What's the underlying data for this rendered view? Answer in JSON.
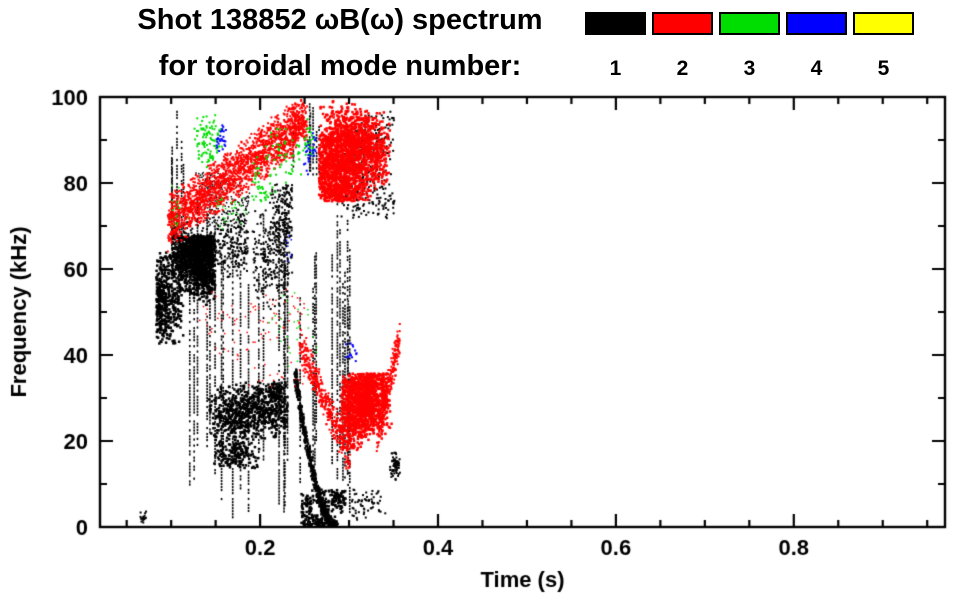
{
  "chart_data": {
    "type": "scatter",
    "title": "Shot 138852 ωB(ω) spectrum",
    "subtitle": "for toroidal mode number:",
    "xlabel": "Time (s)",
    "ylabel": "Frequency (kHz)",
    "xlim": [
      0.02,
      0.97
    ],
    "ylim": [
      0,
      100
    ],
    "xticks": [
      0.2,
      0.4,
      0.6,
      0.8
    ],
    "yticks": [
      0,
      20,
      40,
      60,
      80,
      100
    ],
    "xtick_minor_interval": 0.05,
    "ytick_minor_interval": 10,
    "grid": false,
    "legend_position": "top-right",
    "background": "#ffffff",
    "axis_color": "#000000",
    "series": [
      {
        "name": "1",
        "mode_number": 1,
        "color": "#000000",
        "clusters": [
          {
            "shape": "blob",
            "t": [
              0.082,
              0.148
            ],
            "f": [
              42,
              68
            ],
            "n": 2600,
            "size": 2.5,
            "clumps": 3
          },
          {
            "shape": "blob",
            "t": [
              0.1,
              0.185
            ],
            "f": [
              58,
              77
            ],
            "n": 900,
            "size": 2,
            "clumps": 3
          },
          {
            "shape": "blob",
            "t": [
              0.125,
              0.19
            ],
            "f": [
              70,
              83
            ],
            "n": 260,
            "size": 1.5,
            "clumps": 4
          },
          {
            "shape": "vstreaks",
            "t": [
              0.115,
              0.3
            ],
            "f": [
              2,
              80
            ],
            "streaks": 30
          },
          {
            "shape": "vstreaks",
            "t": [
              0.09,
              0.115
            ],
            "f": [
              55,
              100
            ],
            "streaks": 5
          },
          {
            "shape": "blob",
            "t": [
              0.14,
              0.23
            ],
            "f": [
              14,
              34
            ],
            "n": 1100,
            "size": 2.5,
            "clumps": 5
          },
          {
            "shape": "blob",
            "t": [
              0.19,
              0.235
            ],
            "f": [
              50,
              80
            ],
            "n": 500,
            "size": 2,
            "clumps": 4
          },
          {
            "shape": "chirp",
            "t": [
              0.238,
              0.285
            ],
            "f": [
              36,
              0
            ],
            "n": 600,
            "thick": 3
          },
          {
            "shape": "blob",
            "t": [
              0.245,
              0.295
            ],
            "f": [
              0,
              9
            ],
            "n": 400,
            "size": 2.5,
            "clumps": 3
          },
          {
            "shape": "blob",
            "t": [
              0.28,
              0.35
            ],
            "f": [
              72,
              97
            ],
            "n": 420,
            "size": 2,
            "clumps": 5
          },
          {
            "shape": "vstreaks",
            "t": [
              0.235,
              0.27
            ],
            "f": [
              80,
              100
            ],
            "streaks": 6
          },
          {
            "shape": "blob",
            "t": [
              0.302,
              0.34
            ],
            "f": [
              1,
              9
            ],
            "n": 80,
            "size": 2,
            "clumps": 3
          },
          {
            "shape": "blob",
            "t": [
              0.345,
              0.357
            ],
            "f": [
              11,
              18
            ],
            "n": 60,
            "size": 2,
            "clumps": 1
          },
          {
            "shape": "blob",
            "t": [
              0.062,
              0.072
            ],
            "f": [
              1,
              4
            ],
            "n": 18,
            "size": 2,
            "clumps": 1
          }
        ]
      },
      {
        "name": "2",
        "mode_number": 2,
        "color": "#ff0000",
        "clusters": [
          {
            "shape": "band",
            "t": [
              0.095,
              0.24
            ],
            "f": [
              71,
              93
            ],
            "n": 2000,
            "thick": 7
          },
          {
            "shape": "blob",
            "t": [
              0.225,
              0.252
            ],
            "f": [
              90,
              100
            ],
            "n": 220,
            "size": 2,
            "clumps": 2
          },
          {
            "shape": "blob",
            "t": [
              0.265,
              0.345
            ],
            "f": [
              76,
              100
            ],
            "n": 2600,
            "size": 2.5,
            "clumps": 4
          },
          {
            "shape": "band",
            "t": [
              0.243,
              0.3
            ],
            "f": [
              43,
              16
            ],
            "n": 450,
            "thick": 5
          },
          {
            "shape": "blob",
            "t": [
              0.29,
              0.347
            ],
            "f": [
              13,
              36
            ],
            "n": 1700,
            "size": 2.5,
            "clumps": 3
          },
          {
            "shape": "blob",
            "t": [
              0.13,
              0.25
            ],
            "f": [
              32,
              56
            ],
            "n": 140,
            "size": 1.5,
            "clumps": 6
          },
          {
            "shape": "band",
            "t": [
              0.33,
              0.356
            ],
            "f": [
              22,
              44
            ],
            "n": 260,
            "thick": 5
          }
        ]
      },
      {
        "name": "3",
        "mode_number": 3,
        "color": "#00dd00",
        "clusters": [
          {
            "shape": "blob",
            "t": [
              0.125,
              0.165
            ],
            "f": [
              82,
              96
            ],
            "n": 110,
            "size": 2,
            "clumps": 3
          },
          {
            "shape": "blob",
            "t": [
              0.19,
              0.245
            ],
            "f": [
              76,
              93
            ],
            "n": 130,
            "size": 2,
            "clumps": 4
          },
          {
            "shape": "blob",
            "t": [
              0.15,
              0.185
            ],
            "f": [
              66,
              77
            ],
            "n": 50,
            "size": 1.5,
            "clumps": 3
          },
          {
            "shape": "blob",
            "t": [
              0.1,
              0.122
            ],
            "f": [
              70,
              80
            ],
            "n": 30,
            "size": 1.5,
            "clumps": 2
          },
          {
            "shape": "blob",
            "t": [
              0.2,
              0.27
            ],
            "f": [
              34,
              56
            ],
            "n": 35,
            "size": 1.5,
            "clumps": 4
          },
          {
            "shape": "blob",
            "t": [
              0.24,
              0.26
            ],
            "f": [
              86,
              97
            ],
            "n": 40,
            "size": 2,
            "clumps": 2
          }
        ]
      },
      {
        "name": "4",
        "mode_number": 4,
        "color": "#0000ff",
        "clusters": [
          {
            "shape": "blob",
            "t": [
              0.149,
              0.162
            ],
            "f": [
              87,
              94
            ],
            "n": 28,
            "size": 2,
            "clumps": 1
          },
          {
            "shape": "blob",
            "t": [
              0.245,
              0.262
            ],
            "f": [
              82,
              92
            ],
            "n": 35,
            "size": 2,
            "clumps": 2
          },
          {
            "shape": "blob",
            "t": [
              0.295,
              0.308
            ],
            "f": [
              37,
              44
            ],
            "n": 14,
            "size": 2,
            "clumps": 1
          },
          {
            "shape": "blob",
            "t": [
              0.225,
              0.238
            ],
            "f": [
              60,
              68
            ],
            "n": 10,
            "size": 1.5,
            "clumps": 1
          }
        ]
      },
      {
        "name": "5",
        "mode_number": 5,
        "color": "#ffff00",
        "clusters": []
      }
    ]
  }
}
